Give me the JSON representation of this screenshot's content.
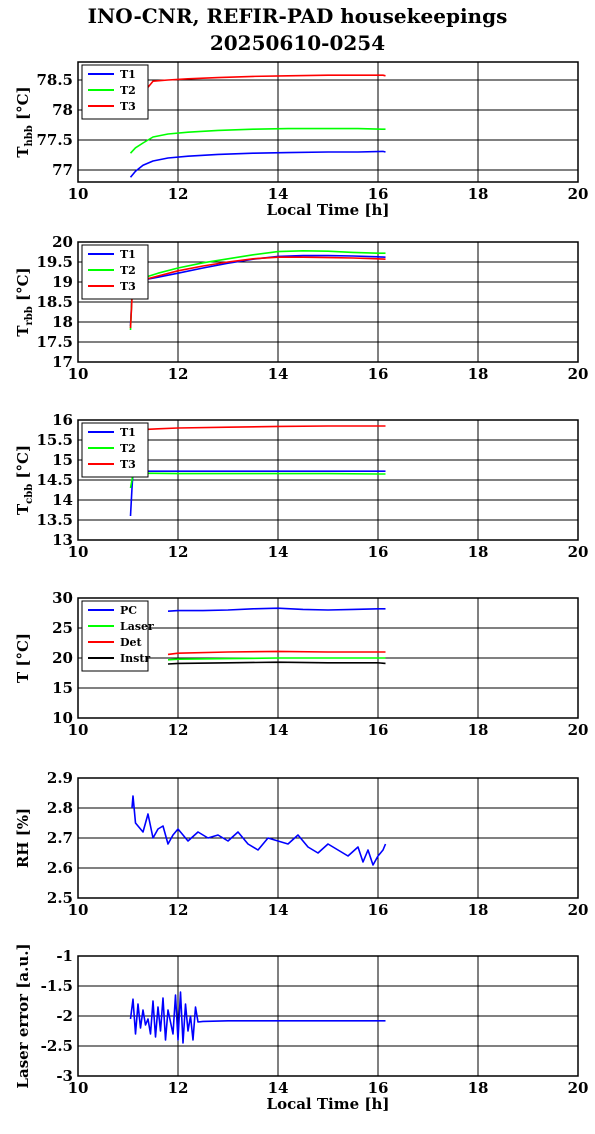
{
  "title": "INO-CNR, REFIR-PAD housekeepings",
  "subtitle": "20250610-0254",
  "colors": {
    "blue": "#0000ff",
    "green": "#00ff00",
    "red": "#ff0000",
    "black": "#000000"
  },
  "chart_data": [
    {
      "type": "line",
      "ylabel_main": "T",
      "ylabel_sub": "hbb",
      "ylabel_unit": " [°C]",
      "xlabel": "Local Time [h]",
      "xlim": [
        10,
        20
      ],
      "ylim": [
        76.8,
        78.8
      ],
      "xticks": [
        10,
        12,
        14,
        16,
        18,
        20
      ],
      "yticks": [
        77,
        77.5,
        78,
        78.5
      ],
      "grid": true,
      "legend": "top-left",
      "series": [
        {
          "name": "T1",
          "color": "#0000ff",
          "x": [
            11.05,
            11.15,
            11.3,
            11.5,
            11.8,
            12.2,
            12.8,
            13.5,
            14.2,
            15.0,
            15.6,
            16.1,
            16.15
          ],
          "y": [
            76.88,
            76.98,
            77.08,
            77.15,
            77.2,
            77.23,
            77.26,
            77.28,
            77.29,
            77.3,
            77.3,
            77.31,
            77.3
          ]
        },
        {
          "name": "T2",
          "color": "#00ff00",
          "x": [
            11.05,
            11.15,
            11.3,
            11.5,
            11.8,
            12.2,
            12.8,
            13.5,
            14.2,
            15.0,
            15.6,
            16.1,
            16.15
          ],
          "y": [
            77.28,
            77.37,
            77.45,
            77.55,
            77.6,
            77.63,
            77.66,
            77.68,
            77.69,
            77.69,
            77.69,
            77.68,
            77.68
          ]
        },
        {
          "name": "T3",
          "color": "#ff0000",
          "x": [
            11.4,
            11.5,
            11.8,
            12.2,
            12.8,
            13.5,
            14.2,
            15.0,
            15.6,
            16.1,
            16.15
          ],
          "y": [
            78.38,
            78.48,
            78.5,
            78.52,
            78.54,
            78.56,
            78.57,
            78.58,
            78.58,
            78.58,
            78.57
          ]
        }
      ]
    },
    {
      "type": "line",
      "ylabel_main": "T",
      "ylabel_sub": "rbb",
      "ylabel_unit": " [°C]",
      "xlabel": "",
      "xlim": [
        10,
        20
      ],
      "ylim": [
        17,
        20
      ],
      "xticks": [
        10,
        12,
        14,
        16,
        18,
        20
      ],
      "yticks": [
        17,
        17.5,
        18,
        18.5,
        19,
        19.5,
        20
      ],
      "grid": true,
      "legend": "top-left",
      "series": [
        {
          "name": "T1",
          "color": "#0000ff",
          "x": [
            11.05,
            11.08,
            11.1,
            11.3,
            11.6,
            12.0,
            12.5,
            13.0,
            13.5,
            14.0,
            14.5,
            15.0,
            15.5,
            16.0,
            16.15
          ],
          "y": [
            17.9,
            18.7,
            19.0,
            19.05,
            19.12,
            19.22,
            19.35,
            19.47,
            19.57,
            19.64,
            19.66,
            19.66,
            19.65,
            19.63,
            19.62
          ]
        },
        {
          "name": "T2",
          "color": "#00ff00",
          "x": [
            11.05,
            11.08,
            11.1,
            11.3,
            11.6,
            12.0,
            12.5,
            13.0,
            13.5,
            14.0,
            14.5,
            15.0,
            15.5,
            16.0,
            16.15
          ],
          "y": [
            17.8,
            18.7,
            19.0,
            19.1,
            19.22,
            19.35,
            19.48,
            19.58,
            19.68,
            19.76,
            19.78,
            19.77,
            19.74,
            19.72,
            19.72
          ]
        },
        {
          "name": "T3",
          "color": "#ff0000",
          "x": [
            11.05,
            11.08,
            11.1,
            11.3,
            11.6,
            12.0,
            12.5,
            13.0,
            13.5,
            14.0,
            14.5,
            15.0,
            15.5,
            16.0,
            16.15
          ],
          "y": [
            17.85,
            18.6,
            19.0,
            19.05,
            19.15,
            19.28,
            19.4,
            19.5,
            19.58,
            19.62,
            19.62,
            19.61,
            19.6,
            19.58,
            19.57
          ]
        }
      ]
    },
    {
      "type": "line",
      "ylabel_main": "T",
      "ylabel_sub": "cbb",
      "ylabel_unit": " [°C]",
      "xlabel": "",
      "xlim": [
        10,
        20
      ],
      "ylim": [
        13,
        16
      ],
      "xticks": [
        10,
        12,
        14,
        16,
        18,
        20
      ],
      "yticks": [
        13,
        13.5,
        14,
        14.5,
        15,
        15.5,
        16
      ],
      "grid": true,
      "legend": "top-left",
      "series": [
        {
          "name": "T1",
          "color": "#0000ff",
          "x": [
            11.05,
            11.08,
            11.1,
            11.3,
            12.0,
            13.0,
            14.0,
            15.0,
            16.0,
            16.15
          ],
          "y": [
            13.6,
            14.3,
            14.7,
            14.72,
            14.72,
            14.72,
            14.72,
            14.72,
            14.72,
            14.72
          ]
        },
        {
          "name": "T2",
          "color": "#00ff00",
          "x": [
            11.05,
            11.08,
            11.1,
            11.3,
            12.0,
            13.0,
            14.0,
            15.0,
            16.0,
            16.15
          ],
          "y": [
            14.3,
            14.5,
            14.65,
            14.67,
            14.66,
            14.66,
            14.66,
            14.66,
            14.65,
            14.65
          ]
        },
        {
          "name": "T3",
          "color": "#ff0000",
          "x": [
            11.3,
            11.6,
            12.0,
            13.0,
            14.0,
            15.0,
            16.0,
            16.15
          ],
          "y": [
            15.76,
            15.78,
            15.8,
            15.82,
            15.84,
            15.85,
            15.85,
            15.85
          ]
        }
      ]
    },
    {
      "type": "line",
      "ylabel_main": "T [°C]",
      "ylabel_sub": "",
      "ylabel_unit": "",
      "xlabel": "",
      "xlim": [
        10,
        20
      ],
      "ylim": [
        10,
        30
      ],
      "xticks": [
        10,
        12,
        14,
        16,
        18,
        20
      ],
      "yticks": [
        10,
        15,
        20,
        25,
        30
      ],
      "grid": true,
      "legend": "top-left",
      "series": [
        {
          "name": "PC",
          "color": "#0000ff",
          "x": [
            11.8,
            12.0,
            12.5,
            13.0,
            13.5,
            14.0,
            14.5,
            15.0,
            15.5,
            16.0,
            16.15
          ],
          "y": [
            27.8,
            27.9,
            27.9,
            28.0,
            28.2,
            28.3,
            28.1,
            28.0,
            28.1,
            28.2,
            28.2
          ]
        },
        {
          "name": "Laser",
          "color": "#00ff00",
          "x": [
            11.8,
            12.0,
            13.0,
            14.0,
            15.0,
            16.0,
            16.15
          ],
          "y": [
            19.7,
            19.8,
            19.9,
            20.0,
            20.0,
            20.0,
            20.0
          ]
        },
        {
          "name": "Det",
          "color": "#ff0000",
          "x": [
            11.8,
            12.0,
            13.0,
            14.0,
            15.0,
            16.0,
            16.15
          ],
          "y": [
            20.6,
            20.8,
            21.0,
            21.1,
            21.0,
            21.0,
            21.0
          ]
        },
        {
          "name": "Instr",
          "color": "#000000",
          "x": [
            11.8,
            12.0,
            13.0,
            14.0,
            15.0,
            16.0,
            16.15
          ],
          "y": [
            19.0,
            19.1,
            19.2,
            19.3,
            19.2,
            19.2,
            19.1
          ]
        }
      ]
    },
    {
      "type": "line",
      "ylabel_main": "RH [%]",
      "ylabel_sub": "",
      "ylabel_unit": "",
      "xlabel": "",
      "xlim": [
        10,
        20
      ],
      "ylim": [
        2.5,
        2.9
      ],
      "xticks": [
        10,
        12,
        14,
        16,
        18,
        20
      ],
      "yticks": [
        2.5,
        2.6,
        2.7,
        2.8,
        2.9
      ],
      "grid": true,
      "legend": "none",
      "series": [
        {
          "name": "",
          "color": "#0000ff",
          "x": [
            11.08,
            11.1,
            11.15,
            11.2,
            11.3,
            11.4,
            11.5,
            11.6,
            11.7,
            11.8,
            11.9,
            12.0,
            12.2,
            12.4,
            12.6,
            12.8,
            13.0,
            13.2,
            13.4,
            13.6,
            13.8,
            14.0,
            14.2,
            14.4,
            14.6,
            14.8,
            15.0,
            15.2,
            15.4,
            15.6,
            15.7,
            15.8,
            15.9,
            16.0,
            16.1,
            16.15
          ],
          "y": [
            2.8,
            2.84,
            2.75,
            2.74,
            2.72,
            2.78,
            2.7,
            2.73,
            2.74,
            2.68,
            2.71,
            2.73,
            2.69,
            2.72,
            2.7,
            2.71,
            2.69,
            2.72,
            2.68,
            2.66,
            2.7,
            2.69,
            2.68,
            2.71,
            2.67,
            2.65,
            2.68,
            2.66,
            2.64,
            2.67,
            2.62,
            2.66,
            2.61,
            2.64,
            2.66,
            2.68
          ]
        }
      ]
    },
    {
      "type": "line",
      "ylabel_main": "Laser error [a.u.]",
      "ylabel_sub": "",
      "ylabel_unit": "",
      "xlabel": "Local Time [h]",
      "xlim": [
        10,
        20
      ],
      "ylim": [
        -3,
        -1
      ],
      "xticks": [
        10,
        12,
        14,
        16,
        18,
        20
      ],
      "yticks": [
        -3,
        -2.5,
        -2,
        -1.5,
        -1
      ],
      "grid": true,
      "legend": "none",
      "series": [
        {
          "name": "",
          "color": "#0000ff",
          "x": [
            11.05,
            11.1,
            11.15,
            11.2,
            11.25,
            11.3,
            11.35,
            11.4,
            11.45,
            11.5,
            11.55,
            11.6,
            11.65,
            11.7,
            11.75,
            11.8,
            11.85,
            11.9,
            11.95,
            12.0,
            12.05,
            12.1,
            12.15,
            12.2,
            12.25,
            12.3,
            12.35,
            12.4,
            12.5,
            13.0,
            14.0,
            15.0,
            16.0,
            16.15
          ],
          "y": [
            -2.05,
            -1.72,
            -2.3,
            -1.8,
            -2.2,
            -1.9,
            -2.15,
            -2.05,
            -2.3,
            -1.75,
            -2.35,
            -1.85,
            -2.25,
            -1.7,
            -2.4,
            -1.9,
            -2.1,
            -2.3,
            -1.65,
            -2.4,
            -1.6,
            -2.45,
            -1.8,
            -2.25,
            -2.0,
            -2.4,
            -1.85,
            -2.1,
            -2.09,
            -2.08,
            -2.08,
            -2.08,
            -2.08,
            -2.08
          ]
        }
      ]
    }
  ]
}
